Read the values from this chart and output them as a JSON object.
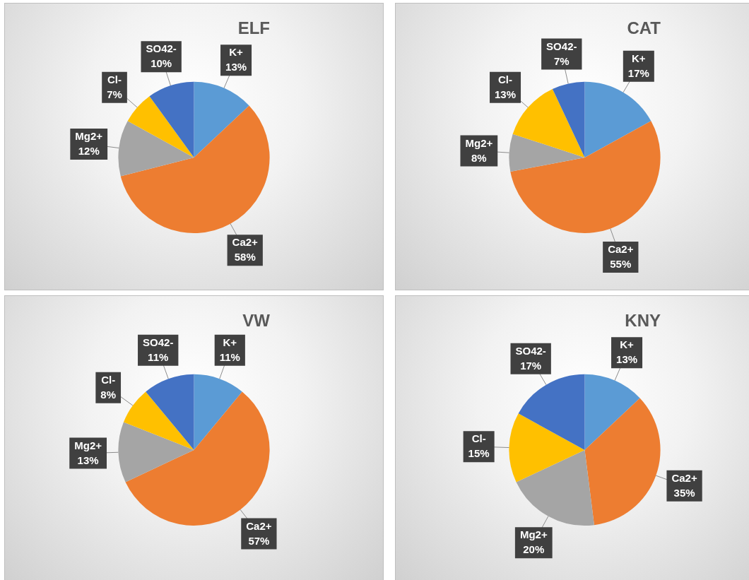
{
  "chart_data": [
    {
      "type": "pie",
      "title": "ELF",
      "categories": [
        "K+",
        "Ca2+",
        "Mg2+",
        "Cl-",
        "SO42-"
      ],
      "values": [
        13,
        58,
        12,
        7,
        10
      ],
      "value_labels": [
        "13%",
        "58%",
        "12%",
        "7%",
        "10%"
      ],
      "colors": [
        "#5b9bd5",
        "#ed7d31",
        "#a5a5a5",
        "#ffc000",
        "#4472c4"
      ]
    },
    {
      "type": "pie",
      "title": "CAT",
      "categories": [
        "K+",
        "Ca2+",
        "Mg2+",
        "Cl-",
        "SO42-"
      ],
      "values": [
        17,
        55,
        8,
        13,
        7
      ],
      "value_labels": [
        "17%",
        "55%",
        "8%",
        "13%",
        "7%"
      ],
      "colors": [
        "#5b9bd5",
        "#ed7d31",
        "#a5a5a5",
        "#ffc000",
        "#4472c4"
      ]
    },
    {
      "type": "pie",
      "title": "VW",
      "categories": [
        "K+",
        "Ca2+",
        "Mg2+",
        "Cl-",
        "SO42-"
      ],
      "values": [
        11,
        57,
        13,
        8,
        11
      ],
      "value_labels": [
        "11%",
        "57%",
        "13%",
        "8%",
        "11%"
      ],
      "colors": [
        "#5b9bd5",
        "#ed7d31",
        "#a5a5a5",
        "#ffc000",
        "#4472c4"
      ]
    },
    {
      "type": "pie",
      "title": "KNY",
      "categories": [
        "K+",
        "Ca2+",
        "Mg2+",
        "Cl-",
        "SO42-"
      ],
      "values": [
        13,
        35,
        20,
        15,
        17
      ],
      "value_labels": [
        "13%",
        "35%",
        "20%",
        "15%",
        "17%"
      ],
      "colors": [
        "#5b9bd5",
        "#ed7d31",
        "#a5a5a5",
        "#ffc000",
        "#4472c4"
      ]
    }
  ]
}
